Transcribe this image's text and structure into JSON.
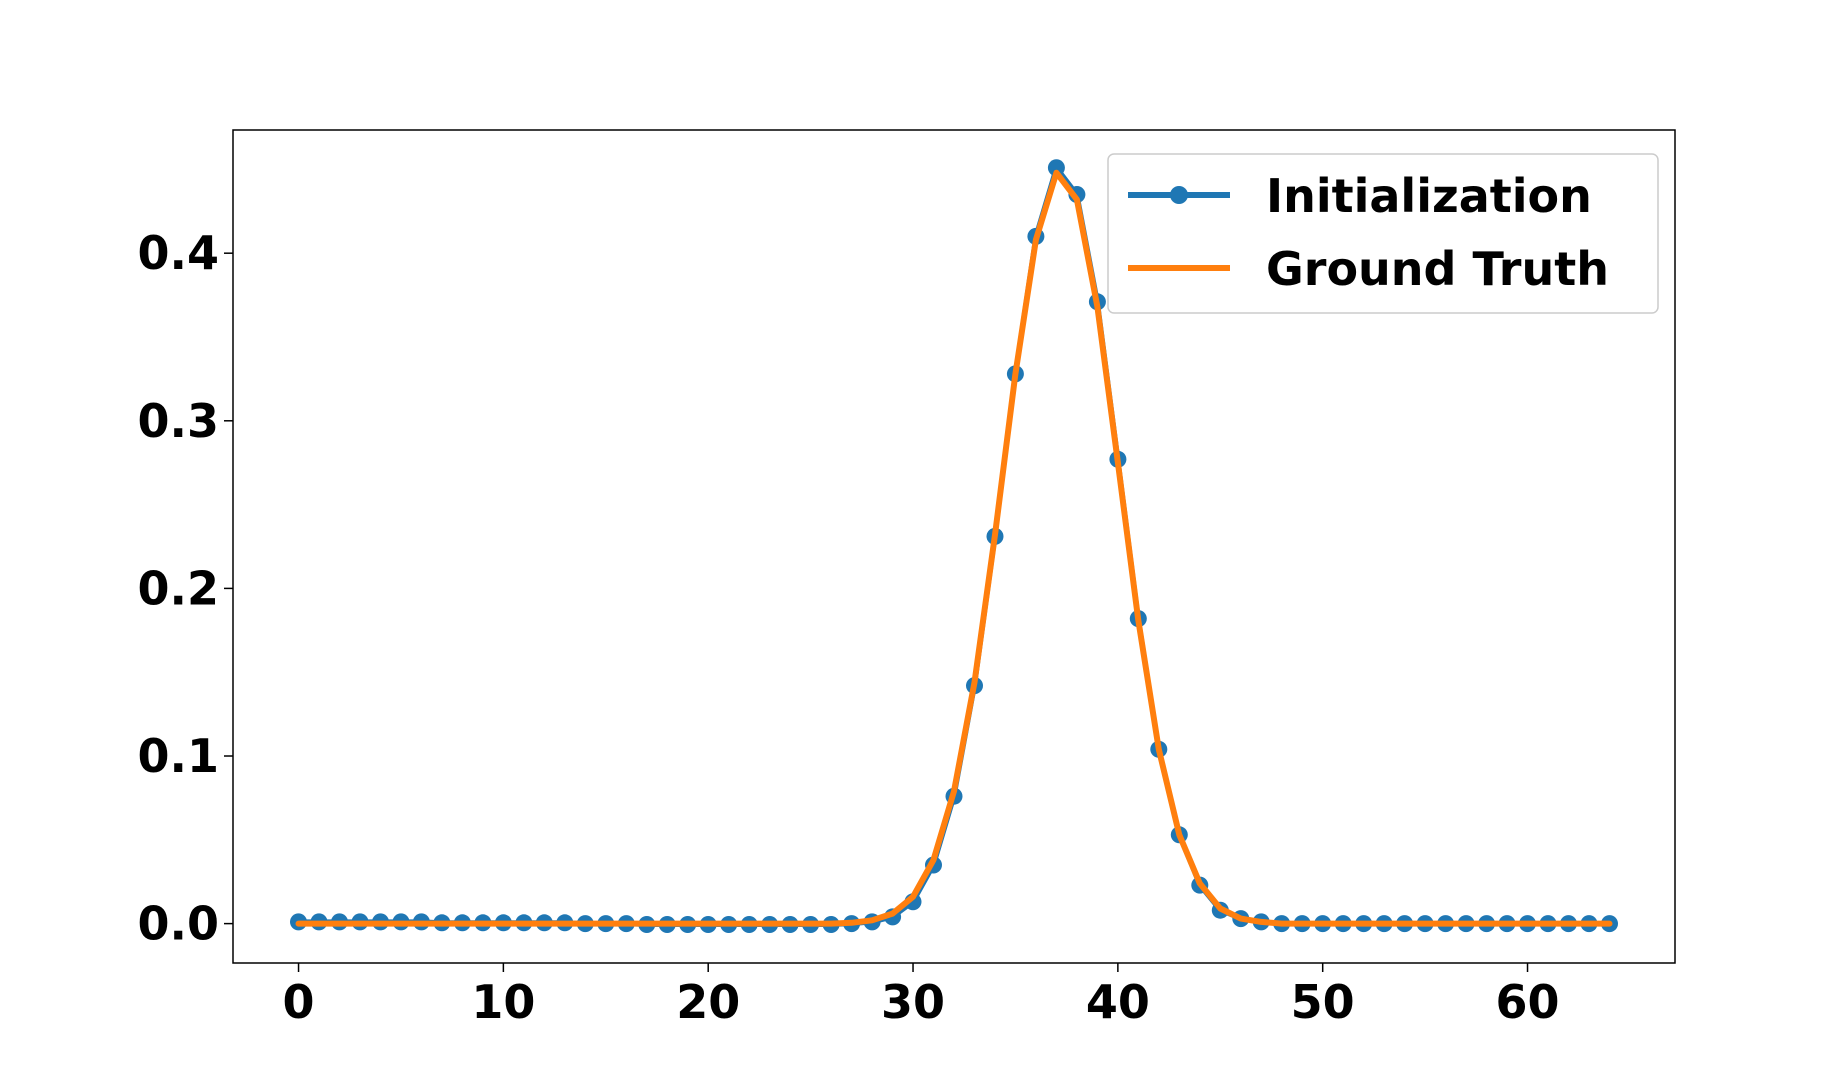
{
  "chart_data": {
    "type": "line",
    "title": "",
    "xlabel": "",
    "ylabel": "",
    "xlim": [
      -3.2,
      67.2
    ],
    "ylim": [
      -0.0235,
      0.4735
    ],
    "xticks": [
      0,
      10,
      20,
      30,
      40,
      50,
      60
    ],
    "xtick_labels": [
      "0",
      "10",
      "20",
      "30",
      "40",
      "50",
      "60"
    ],
    "yticks": [
      0.0,
      0.1,
      0.2,
      0.3,
      0.4
    ],
    "ytick_labels": [
      "0.0",
      "0.1",
      "0.2",
      "0.3",
      "0.4"
    ],
    "grid": false,
    "legend_position": "top-right",
    "x": [
      0,
      1,
      2,
      3,
      4,
      5,
      6,
      7,
      8,
      9,
      10,
      11,
      12,
      13,
      14,
      15,
      16,
      17,
      18,
      19,
      20,
      21,
      22,
      23,
      24,
      25,
      26,
      27,
      28,
      29,
      30,
      31,
      32,
      33,
      34,
      35,
      36,
      37,
      38,
      39,
      40,
      41,
      42,
      43,
      44,
      45,
      46,
      47,
      48,
      49,
      50,
      51,
      52,
      53,
      54,
      55,
      56,
      57,
      58,
      59,
      60,
      61,
      62,
      63,
      64
    ],
    "series": [
      {
        "name": "Initialization",
        "color": "#1f77b4",
        "style": "line-with-markers",
        "values": [
          0.001,
          0.001,
          0.001,
          0.001,
          0.001,
          0.001,
          0.001,
          0.0005,
          0.0005,
          0.0005,
          0.0005,
          0.0005,
          0.0005,
          0.0005,
          0.0,
          0.0,
          0.0,
          -0.0005,
          -0.0005,
          -0.0005,
          -0.0005,
          -0.0005,
          -0.0005,
          -0.0005,
          -0.0005,
          -0.0005,
          -0.0005,
          0.0,
          0.001,
          0.004,
          0.013,
          0.035,
          0.076,
          0.142,
          0.231,
          0.328,
          0.41,
          0.451,
          0.435,
          0.371,
          0.277,
          0.182,
          0.104,
          0.053,
          0.023,
          0.008,
          0.003,
          0.001,
          0.0,
          0.0,
          0.0,
          0.0,
          0.0,
          0.0,
          0.0,
          0.0,
          0.0,
          0.0,
          0.0,
          0.0,
          0.0,
          0.0,
          0.0,
          0.0,
          0.0
        ]
      },
      {
        "name": "Ground Truth",
        "color": "#ff7f0e",
        "style": "line",
        "values": [
          0.0,
          0.0,
          0.0,
          0.0,
          0.0,
          0.0,
          0.0,
          0.0,
          0.0,
          0.0,
          0.0,
          0.0,
          0.0,
          0.0,
          0.0,
          0.0,
          0.0,
          0.0,
          0.0,
          0.0,
          0.0,
          0.0,
          0.0,
          0.0,
          0.0,
          0.0,
          0.0,
          0.0005,
          0.002,
          0.006,
          0.016,
          0.038,
          0.079,
          0.144,
          0.232,
          0.328,
          0.408,
          0.448,
          0.432,
          0.368,
          0.275,
          0.181,
          0.104,
          0.053,
          0.024,
          0.009,
          0.003,
          0.001,
          0.0,
          0.0,
          0.0,
          0.0,
          0.0,
          0.0,
          0.0,
          0.0,
          0.0,
          0.0,
          0.0,
          0.0,
          0.0,
          0.0,
          0.0,
          0.0,
          0.0
        ]
      }
    ]
  }
}
